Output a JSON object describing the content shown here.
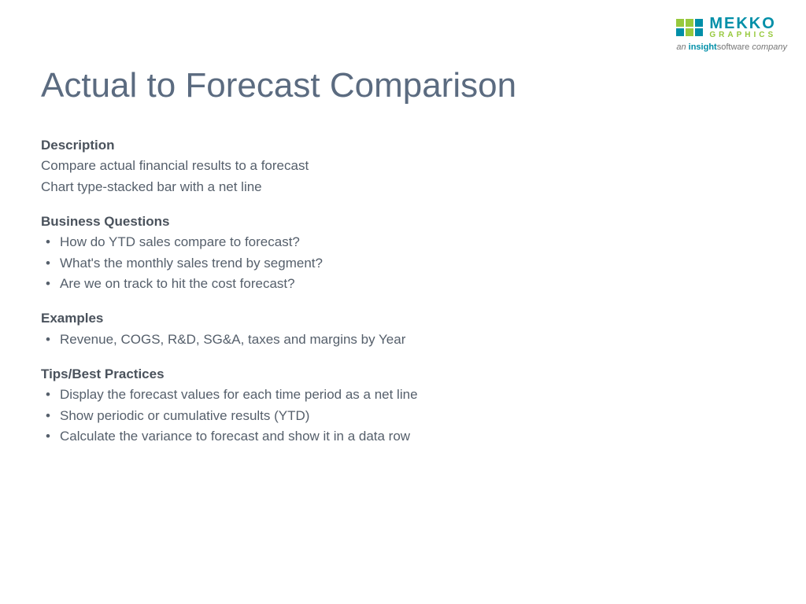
{
  "logo": {
    "brand_top": "MEKKO",
    "brand_bottom": "GRAPHICS",
    "tagline_prefix": "an ",
    "tagline_insight": "insight",
    "tagline_software": "software",
    "tagline_suffix": " company",
    "square_colors": [
      "#97c93d",
      "#97c93d",
      "#008fa8",
      "#008fa8",
      "#97c93d",
      "#008fa8"
    ]
  },
  "title": "Actual to Forecast Comparison",
  "sections": {
    "description": {
      "heading": "Description",
      "lines": [
        "Compare actual financial results to a forecast",
        "Chart type-stacked bar with a net line"
      ]
    },
    "business_questions": {
      "heading": "Business Questions",
      "items": [
        "How do YTD sales compare to forecast?",
        "What's the monthly sales trend by segment?",
        "Are we on track to hit the cost forecast?"
      ]
    },
    "examples": {
      "heading": "Examples",
      "items": [
        "Revenue, COGS, R&D, SG&A, taxes and margins by Year"
      ]
    },
    "tips": {
      "heading": "Tips/Best Practices",
      "items": [
        "Display the forecast values for each time period as a net line",
        "Show periodic or cumulative results (YTD)",
        "Calculate the variance to forecast and show it in a data row"
      ]
    }
  },
  "colors": {
    "title": "#5b6b80",
    "heading": "#4a525c",
    "body": "#555f6b",
    "background": "#ffffff"
  },
  "typography": {
    "title_fontsize": 44,
    "heading_fontsize": 17,
    "body_fontsize": 17
  }
}
